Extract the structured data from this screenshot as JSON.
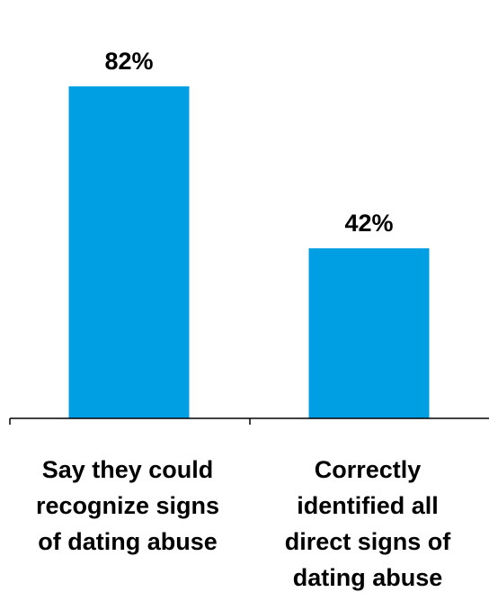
{
  "chart_data": {
    "type": "bar",
    "categories": [
      [
        "Say they could",
        "recognize signs",
        "of dating abuse"
      ],
      [
        "Correctly",
        "identified all",
        "direct signs of",
        "dating abuse"
      ]
    ],
    "values": [
      82,
      42
    ],
    "value_labels": [
      "82%",
      "42%"
    ],
    "ylim": [
      0,
      100
    ],
    "grid": false,
    "legend": "none",
    "bar_color": "#009fe3",
    "axis_color": "#000000"
  }
}
